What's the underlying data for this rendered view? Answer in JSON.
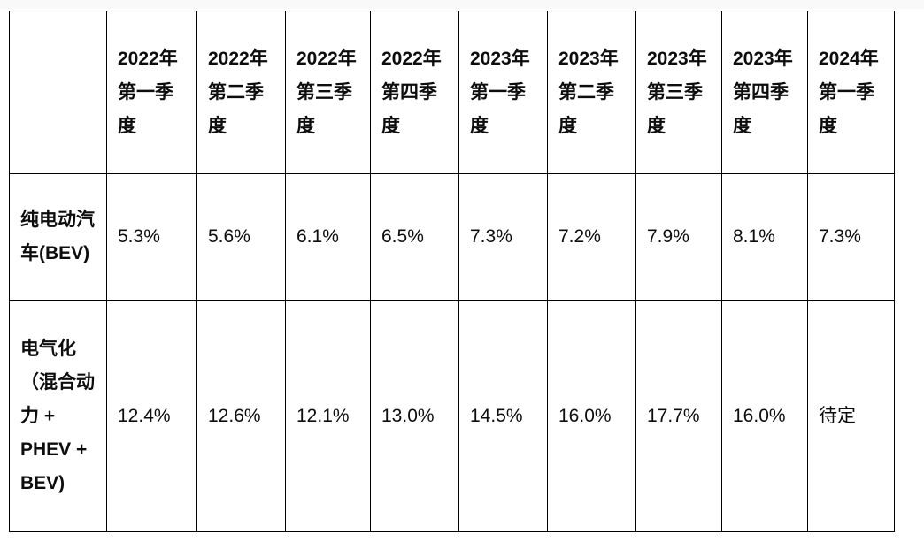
{
  "page": {
    "background_color": "#ffffff",
    "top_strip_color": "#f9f9f9",
    "border_color": "#000000",
    "text_color": "#0d0d0d"
  },
  "table": {
    "header": [
      "",
      "2022年第一季度",
      "2022年第二季度",
      "2022年第三季度",
      "2022年第四季度",
      "2023年第一季度",
      "2023年第二季度",
      "2023年第三季度",
      "2023年第四季度",
      "2024年第一季度"
    ],
    "rows": [
      {
        "label": "纯电动汽车(BEV)",
        "values": [
          "5.3%",
          "5.6%",
          "6.1%",
          "6.5%",
          "7.3%",
          "7.2%",
          "7.9%",
          "8.1%",
          "7.3%"
        ]
      },
      {
        "label": "电气化（混合动力 + PHEV + BEV)",
        "values": [
          "12.4%",
          "12.6%",
          "12.1%",
          "13.0%",
          "14.5%",
          "16.0%",
          "17.7%",
          "16.0%",
          "待定"
        ]
      }
    ]
  },
  "chart_data": {
    "type": "table",
    "title": "",
    "categories": [
      "2022年第一季度",
      "2022年第二季度",
      "2022年第三季度",
      "2022年第四季度",
      "2023年第一季度",
      "2023年第二季度",
      "2023年第三季度",
      "2023年第四季度",
      "2024年第一季度"
    ],
    "series": [
      {
        "name": "纯电动汽车(BEV)",
        "values": [
          5.3,
          5.6,
          6.1,
          6.5,
          7.3,
          7.2,
          7.9,
          8.1,
          7.3
        ],
        "unit": "%"
      },
      {
        "name": "电气化（混合动力 + PHEV + BEV)",
        "values": [
          12.4,
          12.6,
          12.1,
          13.0,
          14.5,
          16.0,
          17.7,
          16.0,
          null
        ],
        "unit": "%",
        "notes": {
          "2024年第一季度": "待定"
        }
      }
    ]
  }
}
